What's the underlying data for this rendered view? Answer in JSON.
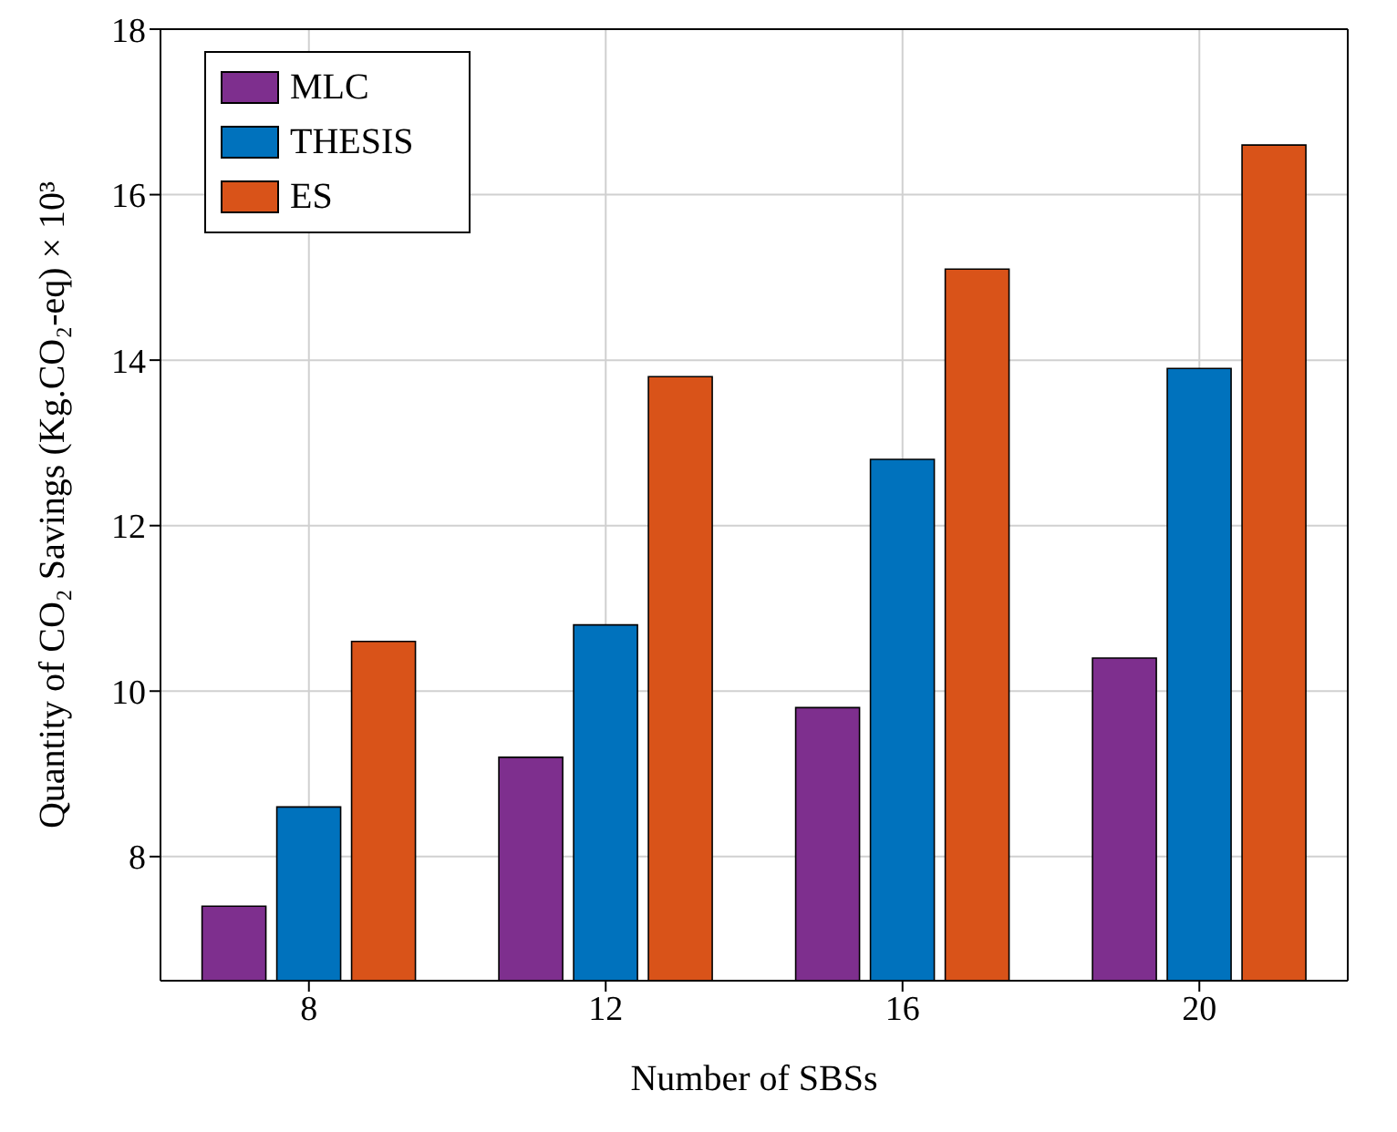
{
  "chart_data": {
    "type": "bar",
    "xlabel": "Number of SBSs",
    "ylabel": "Quantity of CO₂ Savings (Kg.CO₂-eq) × 10³",
    "categories": [
      "8",
      "12",
      "16",
      "20"
    ],
    "series": [
      {
        "name": "MLC",
        "color": "#7e2f8e",
        "values": [
          7.4,
          9.2,
          9.8,
          10.4
        ]
      },
      {
        "name": "THESIS",
        "color": "#0072bd",
        "values": [
          8.6,
          10.8,
          12.8,
          13.9
        ]
      },
      {
        "name": "ES",
        "color": "#d95319",
        "values": [
          10.6,
          13.8,
          15.1,
          16.6
        ]
      }
    ],
    "ylim": [
      6.5,
      18
    ],
    "yticks": [
      8,
      10,
      12,
      14,
      16,
      18
    ],
    "grid": true,
    "legend": "top left"
  }
}
